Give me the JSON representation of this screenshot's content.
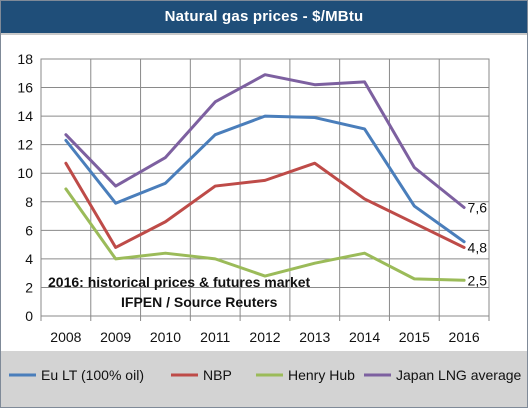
{
  "chart_data": {
    "type": "line",
    "title": "Natural gas prices - $/MBtu",
    "categories": [
      "2008",
      "2009",
      "2010",
      "2011",
      "2012",
      "2013",
      "2014",
      "2015",
      "2016"
    ],
    "ylim": [
      0,
      18
    ],
    "yticks": [
      "0",
      "2",
      "4",
      "6",
      "8",
      "10",
      "12",
      "14",
      "16",
      "18"
    ],
    "grid": true,
    "legend_position": "bottom",
    "series": [
      {
        "name": "Eu LT (100% oil)",
        "color": "#4a7ebb",
        "values": [
          12.3,
          7.9,
          9.3,
          12.7,
          14.0,
          13.9,
          13.1,
          7.7,
          5.2
        ]
      },
      {
        "name": "NBP",
        "color": "#be4b48",
        "values": [
          10.7,
          4.8,
          6.6,
          9.1,
          9.5,
          10.7,
          8.2,
          6.5,
          4.8
        ]
      },
      {
        "name": "Henry Hub",
        "color": "#9bbb59",
        "values": [
          8.9,
          4.0,
          4.4,
          4.0,
          2.8,
          3.7,
          4.4,
          2.6,
          2.5
        ]
      },
      {
        "name": "Japan LNG average",
        "color": "#7d60a0",
        "values": [
          12.7,
          9.1,
          11.1,
          15.0,
          16.9,
          16.2,
          16.4,
          10.4,
          7.6
        ]
      }
    ],
    "end_labels": [
      {
        "text": "7,6",
        "value": 7.6
      },
      {
        "text": "4,8",
        "value": 4.8
      },
      {
        "text": "2,5",
        "value": 2.5
      }
    ],
    "annotation_lines": [
      "2016: historical prices & futures market",
      "IFPEN / Source Reuters"
    ]
  }
}
